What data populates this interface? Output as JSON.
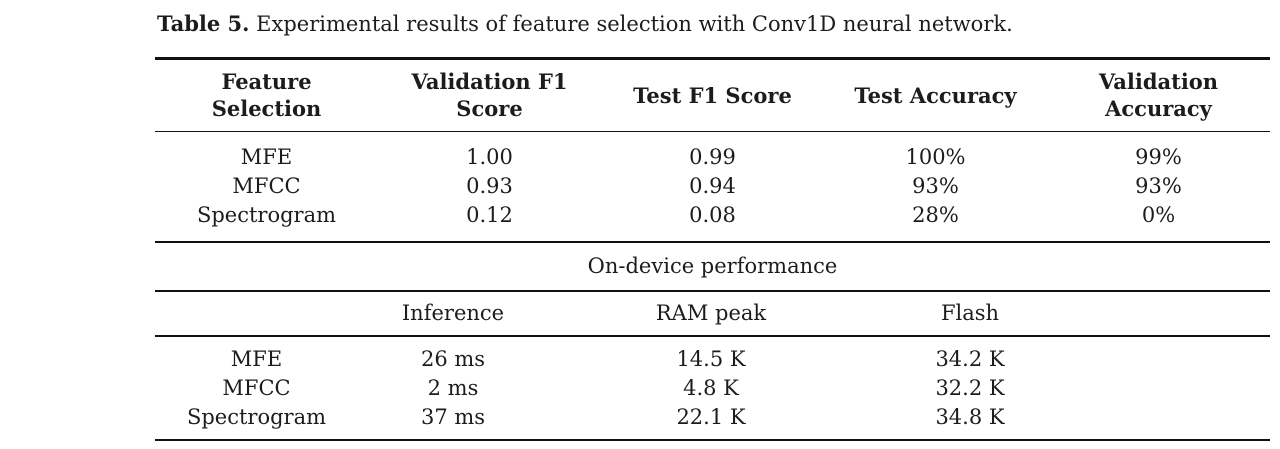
{
  "caption": {
    "label": "Table 5.",
    "text": "Experimental results of feature selection with Conv1D neural network."
  },
  "main_table": {
    "headers": [
      {
        "line1": "Feature",
        "line2": "Selection"
      },
      {
        "line1": "Validation F1",
        "line2": "Score"
      },
      {
        "line1": "Test F1 Score"
      },
      {
        "line1": "Test Accuracy"
      },
      {
        "line1": "Validation",
        "line2": "Accuracy"
      }
    ],
    "rows": [
      [
        "MFE",
        "1.00",
        "0.99",
        "100%",
        "99%"
      ],
      [
        "MFCC",
        "0.93",
        "0.94",
        "93%",
        "93%"
      ],
      [
        "Spectrogram",
        "0.12",
        "0.08",
        "28%",
        "0%"
      ]
    ]
  },
  "ondevice_table": {
    "heading": "On-device performance",
    "headers": [
      "Inference",
      "RAM peak",
      "Flash"
    ],
    "rows": [
      [
        "MFE",
        "26 ms",
        "14.5 K",
        "34.2 K"
      ],
      [
        "MFCC",
        "2 ms",
        "4.8 K",
        "32.2 K"
      ],
      [
        "Spectrogram",
        "37 ms",
        "22.1 K",
        "34.8 K"
      ]
    ]
  }
}
